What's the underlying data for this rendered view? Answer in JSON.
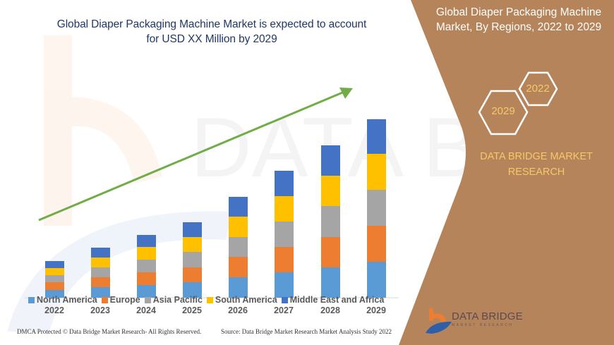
{
  "header": {
    "title": "Global Diaper Packaging Machine Market is expected to account for USD XX Million by 2029",
    "title_line1": "Global Diaper Packaging Machine Market is expected to account",
    "title_line2": "for USD XX Million by 2029"
  },
  "side_panel": {
    "title_line1": "Global Diaper Packaging Machine",
    "title_line2": "Market, By Regions, 2022 to 2029",
    "hex_start_year": "2022",
    "hex_end_year": "2029",
    "brand_line1": "DATA BRIDGE MARKET",
    "brand_line2": "RESEARCH",
    "logo_name": "DATA BRIDGE",
    "logo_tagline": "MARKET RESEARCH",
    "panel_color": "#b5845a"
  },
  "footer": {
    "copyright": "DMCA Protected © Data Bridge Market Research- All Rights Reserved.",
    "source": "Source: Data Bridge Market Research Market Analysis Study 2022"
  },
  "colors": {
    "north_america": "#5b9bd5",
    "europe": "#ed7d31",
    "asia_pacific": "#a5a5a5",
    "south_america": "#ffc000",
    "middle_east_africa": "#4472c4",
    "trend_arrow": "#70ad47"
  },
  "chart_data": {
    "type": "bar",
    "stacked": true,
    "title": "Global Diaper Packaging Machine Market is expected to account for USD XX Million by 2029",
    "xlabel": "",
    "ylabel": "",
    "categories": [
      "2022",
      "2023",
      "2024",
      "2025",
      "2026",
      "2027",
      "2028",
      "2029"
    ],
    "series": [
      {
        "name": "North America",
        "color": "#5b9bd5",
        "values": [
          11,
          15,
          18,
          22,
          29,
          36,
          43,
          51
        ]
      },
      {
        "name": "Europe",
        "color": "#ed7d31",
        "values": [
          11,
          14,
          18,
          21,
          29,
          36,
          43,
          51
        ]
      },
      {
        "name": "Asia Pacific",
        "color": "#a5a5a5",
        "values": [
          10,
          14,
          18,
          22,
          28,
          36,
          44,
          51
        ]
      },
      {
        "name": "South America",
        "color": "#ffc000",
        "values": [
          10,
          14,
          18,
          21,
          29,
          36,
          43,
          51
        ]
      },
      {
        "name": "Middle East and Africa",
        "color": "#4472c4",
        "values": [
          10,
          14,
          17,
          21,
          28,
          36,
          43,
          49
        ]
      }
    ],
    "legend": [
      "North America",
      "Europe",
      "Asia Pacific",
      "South America",
      "Middle East and Africa"
    ],
    "legend_position": "bottom",
    "grid": false,
    "annotations": [
      "Upward green trend arrow"
    ],
    "units": "relative (no y-axis values shown)"
  }
}
